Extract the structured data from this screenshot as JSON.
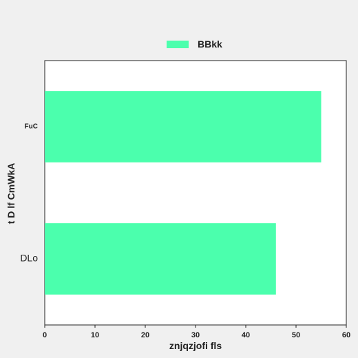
{
  "chart_data": {
    "type": "bar",
    "orientation": "horizontal",
    "categories": [
      "DLo",
      "FuC"
    ],
    "series": [
      {
        "name": "BBkk",
        "values": [
          46,
          55
        ],
        "color": "#4bffad"
      }
    ],
    "xlabel": "znjqzjofi fls",
    "ylabel": "t D lf CmWkA",
    "xlim": [
      0,
      60
    ],
    "xticks": [
      0,
      10,
      20,
      30,
      40,
      50,
      60
    ],
    "xtick_labels": [
      "0",
      "10",
      "20",
      "30",
      "40",
      "50",
      "60"
    ],
    "grid": false,
    "legend_position": "top-center"
  }
}
